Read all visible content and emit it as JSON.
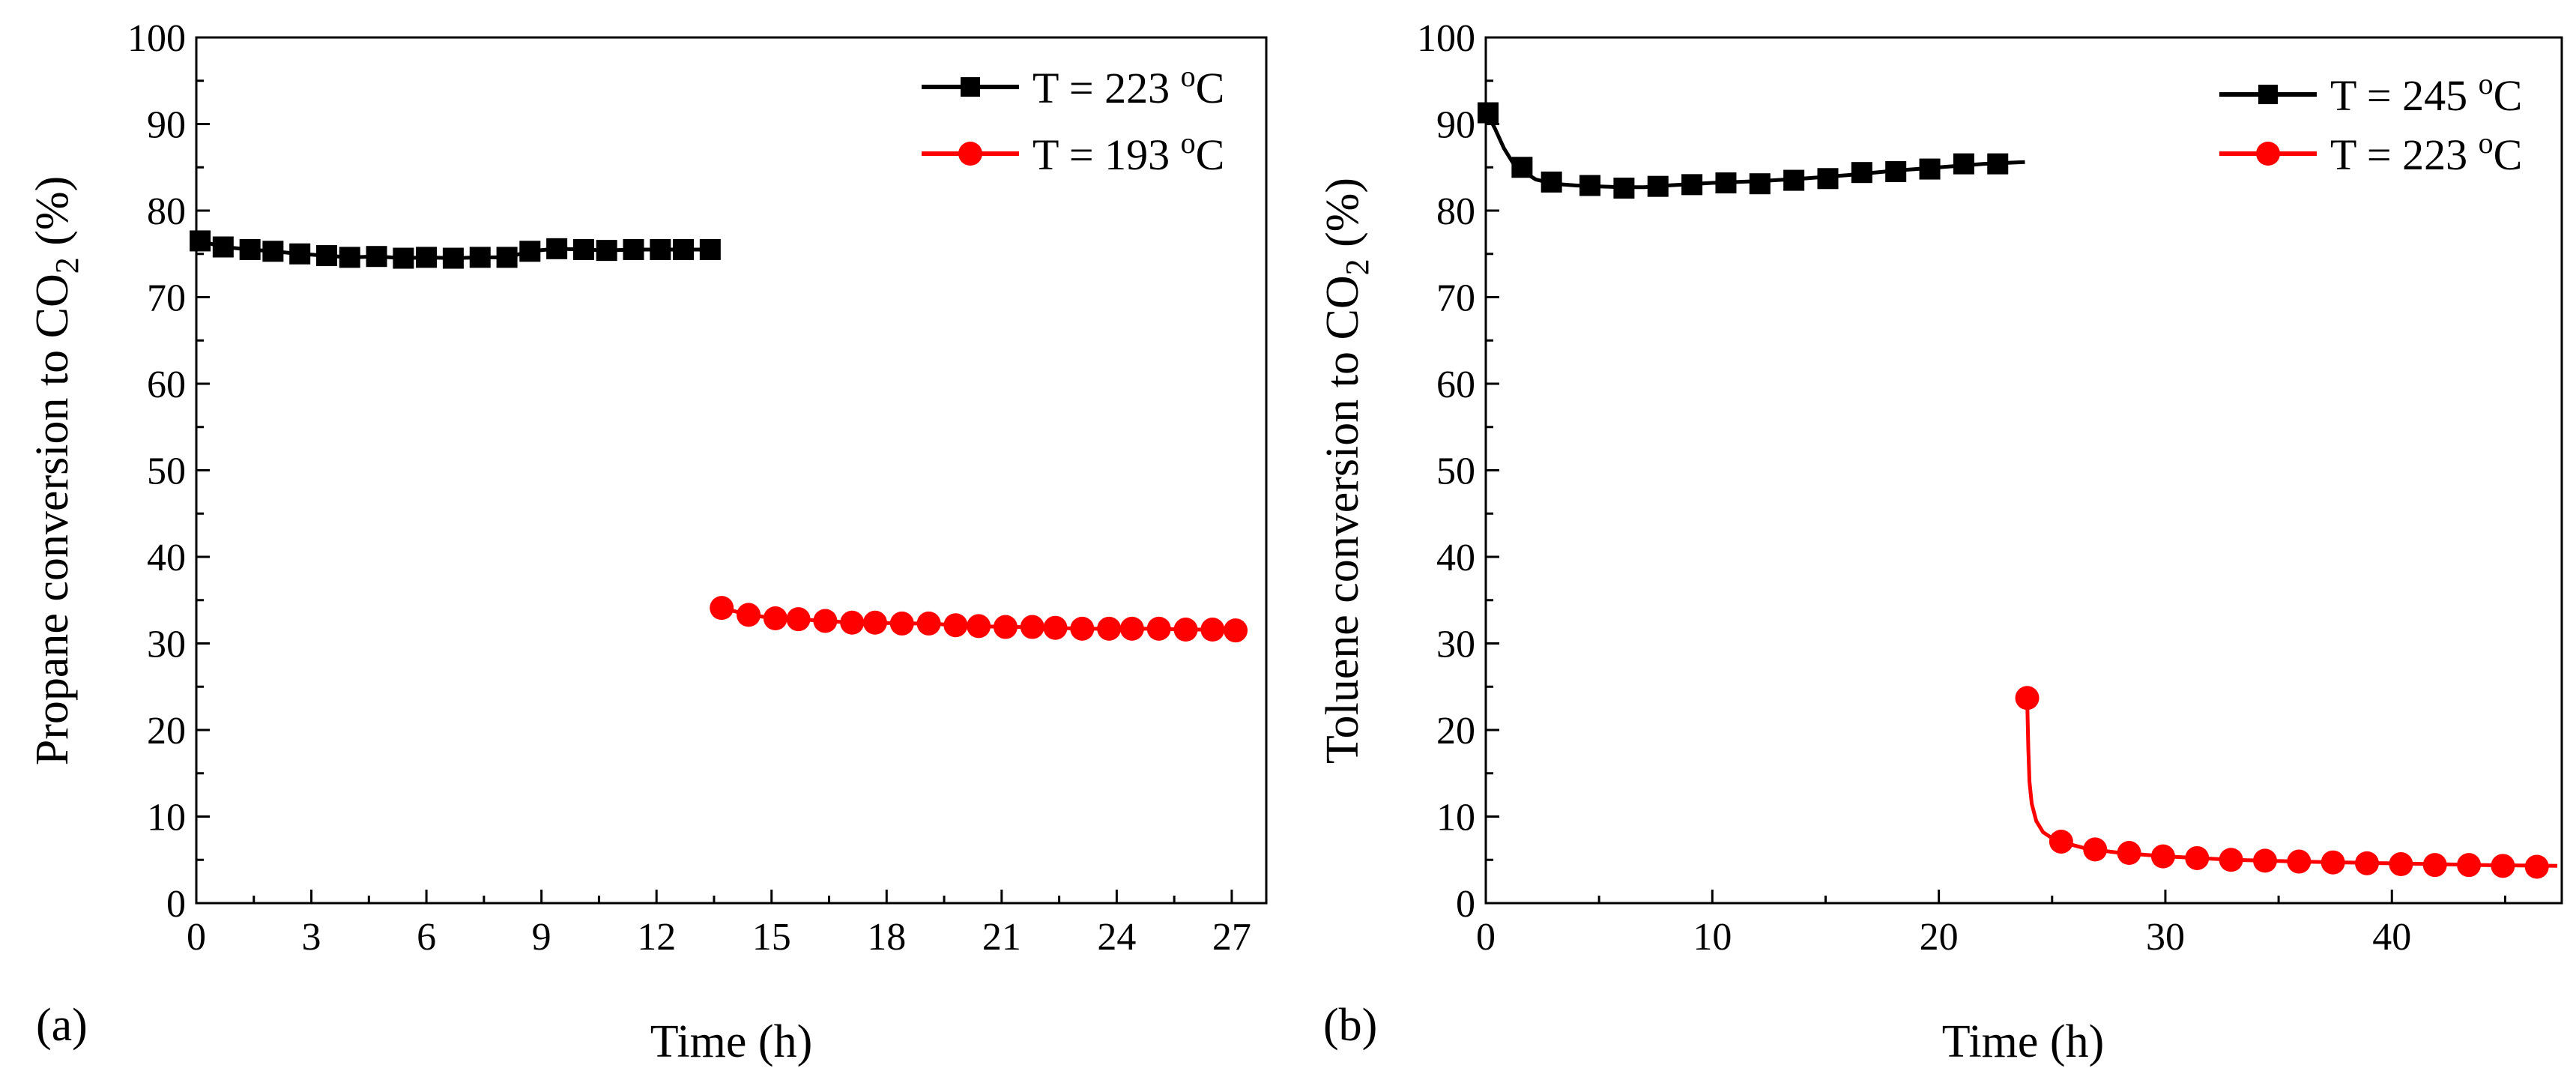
{
  "chart_data": [
    {
      "type": "line",
      "panel_label": "(a)",
      "xlabel": "Time (h)",
      "ylabel": "Propane conversion to CO",
      "ylabel_subscript": "2",
      "ylabel_suffix": " (%)",
      "xlim": [
        0,
        27.9
      ],
      "ylim": [
        0,
        100
      ],
      "xticks": [
        0,
        3,
        6,
        9,
        12,
        15,
        18,
        21,
        24,
        27
      ],
      "yticks": [
        0,
        10,
        20,
        30,
        40,
        50,
        60,
        70,
        80,
        90,
        100
      ],
      "legend_position": "top-right",
      "series": [
        {
          "name": "T = 223 ",
          "name_superscript": "o",
          "name_suffix": "C",
          "color": "#000000",
          "marker": "square",
          "x": [
            0.1,
            0.7,
            1.4,
            2.0,
            2.7,
            3.4,
            4.0,
            4.7,
            5.4,
            6.0,
            6.7,
            7.4,
            8.1,
            8.7,
            9.4,
            10.1,
            10.7,
            11.4,
            12.1,
            12.7,
            13.4
          ],
          "y": [
            76.5,
            75.8,
            75.5,
            75.3,
            75.0,
            74.8,
            74.6,
            74.7,
            74.5,
            74.6,
            74.5,
            74.6,
            74.6,
            75.3,
            75.6,
            75.5,
            75.4,
            75.5,
            75.5,
            75.5,
            75.5
          ]
        },
        {
          "name": "T = 193 ",
          "name_superscript": "o",
          "name_suffix": "C",
          "color": "#ff0000",
          "marker": "circle",
          "x": [
            13.7,
            14.4,
            15.1,
            15.7,
            16.4,
            17.1,
            17.7,
            18.4,
            19.1,
            19.8,
            20.4,
            21.1,
            21.8,
            22.4,
            23.1,
            23.8,
            24.4,
            25.1,
            25.8,
            26.5,
            27.1
          ],
          "y": [
            34.1,
            33.3,
            32.9,
            32.8,
            32.6,
            32.4,
            32.4,
            32.3,
            32.3,
            32.1,
            32.0,
            31.9,
            31.9,
            31.8,
            31.7,
            31.7,
            31.7,
            31.7,
            31.6,
            31.6,
            31.5
          ]
        }
      ]
    },
    {
      "type": "line",
      "panel_label": "(b)",
      "xlabel": "Time (h)",
      "ylabel": "Toluene conversion to CO",
      "ylabel_subscript": "2",
      "ylabel_suffix": " (%)",
      "xlim": [
        0,
        47.5
      ],
      "ylim": [
        0,
        100
      ],
      "xticks": [
        0,
        10,
        20,
        30,
        40
      ],
      "yticks": [
        0,
        10,
        20,
        30,
        40,
        50,
        60,
        70,
        80,
        90,
        100
      ],
      "legend_position": "top-right",
      "series": [
        {
          "name": "T = 245 ",
          "name_superscript": "o",
          "name_suffix": "C",
          "color": "#000000",
          "marker": "square",
          "line_x": [
            0,
            0.4,
            0.8,
            1.2,
            1.6,
            2.2,
            3.0,
            4.0,
            5.0,
            6.0,
            7.0,
            8.0,
            10.0,
            12.0,
            14.0,
            16.0,
            18.0,
            20.0,
            22.0,
            23.8
          ],
          "line_y": [
            91.5,
            89.5,
            87.2,
            85.5,
            84.6,
            83.6,
            83.1,
            82.9,
            82.8,
            82.7,
            82.7,
            82.9,
            83.2,
            83.4,
            83.7,
            84.1,
            84.6,
            85.0,
            85.4,
            85.6
          ],
          "x": [
            0.1,
            1.6,
            2.9,
            4.6,
            6.1,
            7.6,
            9.1,
            10.6,
            12.1,
            13.6,
            15.1,
            16.6,
            18.1,
            19.6,
            21.1,
            22.6
          ],
          "y": [
            91.3,
            85.0,
            83.3,
            82.9,
            82.6,
            82.8,
            83.0,
            83.2,
            83.1,
            83.5,
            83.7,
            84.4,
            84.5,
            84.8,
            85.4,
            85.4
          ]
        },
        {
          "name": "T = 223 ",
          "name_superscript": "o",
          "name_suffix": "C",
          "color": "#ff0000",
          "marker": "circle",
          "line_x": [
            23.9,
            23.95,
            24.0,
            24.1,
            24.3,
            24.6,
            25.0,
            25.5,
            26.5,
            28.0,
            30.0,
            33.0,
            36.0,
            40.0,
            44.0,
            47.3
          ],
          "line_y": [
            23.7,
            18.0,
            14.0,
            11.5,
            9.5,
            8.2,
            7.5,
            7.0,
            6.3,
            5.8,
            5.4,
            5.0,
            4.8,
            4.6,
            4.4,
            4.3
          ],
          "x": [
            23.9,
            25.4,
            26.9,
            28.4,
            29.9,
            31.4,
            32.9,
            34.4,
            35.9,
            37.4,
            38.9,
            40.4,
            41.9,
            43.4,
            44.9,
            46.4
          ],
          "y": [
            23.7,
            7.1,
            6.2,
            5.8,
            5.4,
            5.2,
            5.0,
            4.9,
            4.8,
            4.7,
            4.6,
            4.5,
            4.4,
            4.4,
            4.3,
            4.2
          ]
        }
      ]
    }
  ]
}
